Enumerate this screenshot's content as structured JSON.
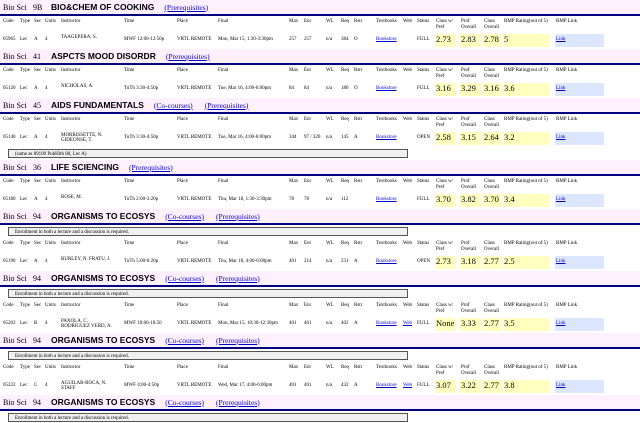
{
  "headers": {
    "code": "Code",
    "type": "Type",
    "sec": "Sec",
    "units": "Units",
    "instructor": "Instructor",
    "time": "Time",
    "place": "Place",
    "final": "Final",
    "max": "Max",
    "enr": "Enr",
    "wl": "WL",
    "req": "Req",
    "rstr": "Rstr",
    "textbooks": "Textbooks",
    "web": "Web",
    "status": "Status",
    "class_pref": "Class w/ Pref",
    "prof_overall": "Prof Overall",
    "class_overall": "Class Overall",
    "rmp_rating": "RMP Rating(out of 5)",
    "rmp_link": "RMP Link"
  },
  "courses": [
    {
      "dept": "Bio Sci",
      "num": "9B",
      "title": "BIO&CHEM OF COOKING",
      "links": [
        "(Prerequisites)"
      ],
      "show_header": true,
      "sections": [
        {
          "code": "05965",
          "type": "Lec",
          "sec": "A",
          "units": "4",
          "instructor": "TAAGEPERA, S.",
          "time": "MWF 12:00-12:50p",
          "place": "VRTL REMOTE",
          "final": "Mon, Mar 15, 1:30-3:30pm",
          "max": "257",
          "enr": "257",
          "wl": "n/a",
          "req": "384",
          "rstr": "O",
          "textbooks": "Bookstore",
          "web": "",
          "status": "FULL",
          "class_pref": "2.73",
          "prof_overall": "2.83",
          "class_overall": "2.78",
          "rmp": "5",
          "rmp_link": "Link"
        }
      ],
      "note": ""
    },
    {
      "dept": "Bio Sci",
      "num": "41",
      "title": "ASPCTS MOOD DISORDR",
      "links": [
        "(Prerequisites)"
      ],
      "show_header": true,
      "sections": [
        {
          "code": "05120",
          "type": "Lec",
          "sec": "A",
          "units": "4",
          "instructor": "NICHOLAS, A.",
          "time": "TuTh 3:30-4:50p",
          "place": "VRTL REMOTE",
          "final": "Tue, Mar 16, 4:00-6:00pm",
          "max": "84",
          "enr": "84",
          "wl": "n/a",
          "req": "180",
          "rstr": "O",
          "textbooks": "Bookstore",
          "web": "",
          "status": "FULL",
          "class_pref": "3.16",
          "prof_overall": "3.29",
          "class_overall": "3.16",
          "rmp": "3.6",
          "rmp_link": "Link"
        }
      ],
      "note": ""
    },
    {
      "dept": "Bio Sci",
      "num": "45",
      "title": "AIDS FUNDAMENTALS",
      "links": [
        "(Co-courses)",
        "(Prerequisites)"
      ],
      "show_header": true,
      "sections": [
        {
          "code": "05140",
          "type": "Lec",
          "sec": "A",
          "units": "4",
          "instructor": "MORRISSETTE, N. GIDEONSE, T.",
          "time": "TuTh 3:30-4:50p",
          "place": "VRTL REMOTE",
          "final": "Tue, Mar 16, 4:00-6:00pm",
          "max": "344",
          "enr": "97 / 320",
          "wl": "n/a",
          "req": "145",
          "rstr": "A",
          "textbooks": "Bookstore",
          "web": "",
          "status": "OPEN",
          "class_pref": "2.58",
          "prof_overall": "3.15",
          "class_overall": "2.64",
          "rmp": "3.2",
          "rmp_link": "Link"
        }
      ],
      "note": "(same as 89100 PubHlth 80, Lec A)"
    },
    {
      "dept": "Bio Sci",
      "num": "36",
      "title": "LIFE SCIENCING",
      "links": [
        "(Prerequisites)"
      ],
      "show_header": true,
      "sections": [
        {
          "code": "05180",
          "type": "Lec",
          "sec": "A",
          "units": "4",
          "instructor": "ROSE, M.",
          "time": "TuTh 2:00-3:20p",
          "place": "VRTL REMOTE",
          "final": "Thu, Mar 18, 1:30-3:30pm",
          "max": "78",
          "enr": "78",
          "wl": "n/a",
          "req": "112",
          "rstr": "",
          "textbooks": "Bookstore",
          "web": "",
          "status": "FULL",
          "class_pref": "3.70",
          "prof_overall": "3.82",
          "class_overall": "3.70",
          "rmp": "3.4",
          "rmp_link": "Link"
        }
      ],
      "note": ""
    },
    {
      "dept": "Bio Sci",
      "num": "94",
      "title": "ORGANISMS TO ECOSYS",
      "links": [
        "(Co-courses)",
        "(Prerequisites)"
      ],
      "show_header": false,
      "note_before": "Enrollment in both a lecture and a discussion is required.",
      "show_header2": true,
      "sections": [
        {
          "code": "05190",
          "type": "Lec",
          "sec": "A",
          "units": "4",
          "instructor": "BURLEY, N. FRATU, J.",
          "time": "TuTh 5:00-6:20p",
          "place": "VRTL REMOTE",
          "final": "Thu, Mar 18, 4:00-6:00pm",
          "max": "401",
          "enr": "214",
          "wl": "n/a",
          "req": "231",
          "rstr": "A",
          "textbooks": "Bookstore",
          "web": "",
          "status": "OPEN",
          "class_pref": "2.73",
          "prof_overall": "3.18",
          "class_overall": "2.77",
          "rmp": "2.5",
          "rmp_link": "Link"
        }
      ],
      "note": ""
    },
    {
      "dept": "Bio Sci",
      "num": "94",
      "title": "ORGANISMS TO ECOSYS",
      "links": [
        "(Co-courses)",
        "(Prerequisites)"
      ],
      "show_header": false,
      "note_before": "Enrollment in both a lecture and a discussion is required.",
      "show_header2": true,
      "sections": [
        {
          "code": "05203",
          "type": "Lec",
          "sec": "B",
          "units": "4",
          "instructor": "PAXOLA, C. RODRIGUEZ VERD, A.",
          "time": "MWF 10:00-10:50",
          "place": "VRTL REMOTE",
          "final": "Mon, Mar 15, 10:30-12:30pm",
          "max": "401",
          "enr": "401",
          "wl": "n/a",
          "req": "402",
          "rstr": "A",
          "textbooks": "Bookstore",
          "web": "Web",
          "status": "FULL",
          "class_pref": "None",
          "prof_overall": "3.33",
          "class_overall": "2.77",
          "rmp": "3.5",
          "rmp_link": "Link"
        }
      ],
      "note": ""
    },
    {
      "dept": "Bio Sci",
      "num": "94",
      "title": "ORGANISMS TO ECOSYS",
      "links": [
        "(Co-courses)",
        "(Prerequisites)"
      ],
      "show_header": false,
      "note_before": "Enrollment in both a lecture and a discussion is required.",
      "show_header2": true,
      "sections": [
        {
          "code": "05222",
          "type": "Lec",
          "sec": "C",
          "units": "4",
          "instructor": "AGUILAR-ROCA, N. STAFF",
          "time": "MWF 4:00-4:50p",
          "place": "VRTL REMOTE",
          "final": "Wed, Mar 17, 4:00-6:00pm",
          "max": "401",
          "enr": "401",
          "wl": "n/a",
          "req": "432",
          "rstr": "A",
          "textbooks": "Bookstore",
          "web": "Web",
          "status": "FULL",
          "class_pref": "3.07",
          "prof_overall": "3.22",
          "class_overall": "2.77",
          "rmp": "3.8",
          "rmp_link": "Link"
        }
      ],
      "note": ""
    },
    {
      "dept": "Bio Sci",
      "num": "94",
      "title": "ORGANISMS TO ECOSYS",
      "links": [
        "(Co-courses)",
        "(Prerequisites)"
      ],
      "show_header": false,
      "note_before": "Enrollment in both a lecture and a discussion is required.",
      "show_header2": false,
      "sections": [],
      "note": ""
    }
  ]
}
